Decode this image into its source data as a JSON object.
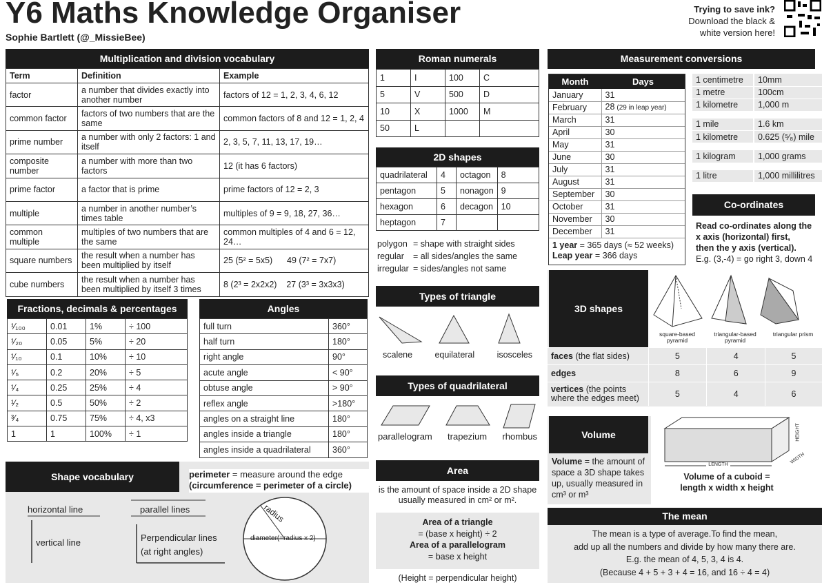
{
  "header": {
    "title": "Y6 Maths Knowledge Organiser",
    "author": "Sophie Bartlett (@_MissieBee)",
    "ink_note": [
      "Trying to save ink?",
      "Download the black &",
      "white version here!"
    ]
  },
  "vocab": {
    "title": "Multiplication and division vocabulary",
    "columns": [
      "Term",
      "Definition",
      "Example"
    ],
    "rows": [
      [
        "factor",
        "a number that divides exactly into another number",
        "factors of 12 = 1, 2, 3, 4, 6, 12"
      ],
      [
        "common factor",
        "factors of two numbers that are the same",
        "common factors of 8 and 12 = 1, 2, 4"
      ],
      [
        "prime number",
        "a number with only 2 factors: 1 and itself",
        "2, 3, 5, 7, 11, 13, 17, 19…"
      ],
      [
        "composite number",
        "a number with more than two factors",
        "12 (it has 6 factors)"
      ],
      [
        "prime factor",
        "a factor that is prime",
        "prime factors of 12 = 2, 3"
      ],
      [
        "multiple",
        "a number in another number’s times table",
        "multiples of 9 = 9, 18, 27, 36…"
      ],
      [
        "common multiple",
        "multiples of two numbers that are the same",
        "common multiples of 4 and 6 = 12, 24…"
      ],
      [
        "square numbers",
        "the result when a number has been multiplied by itself",
        "25 (5² = 5x5)      49 (7² = 7x7)"
      ],
      [
        "cube numbers",
        "the result when a number has been multiplied by itself 3 times",
        "8 (2³ = 2x2x2)    27 (3³ = 3x3x3)"
      ]
    ]
  },
  "fractions": {
    "title": "Fractions, decimals & percentages",
    "rows": [
      [
        "¹⁄₁₀₀",
        "0.01",
        "1%",
        "÷ 100"
      ],
      [
        "¹⁄₂₀",
        "0.05",
        "5%",
        "÷ 20"
      ],
      [
        "¹⁄₁₀",
        "0.1",
        "10%",
        "÷ 10"
      ],
      [
        "¹⁄₅",
        "0.2",
        "20%",
        "÷ 5"
      ],
      [
        "¹⁄₄",
        "0.25",
        "25%",
        "÷ 4"
      ],
      [
        "¹⁄₂",
        "0.5",
        "50%",
        "÷ 2"
      ],
      [
        "³⁄₄",
        "0.75",
        "75%",
        "÷ 4, x3"
      ],
      [
        "1",
        "1",
        "100%",
        "÷ 1"
      ]
    ]
  },
  "angles": {
    "title": "Angles",
    "rows": [
      [
        "full turn",
        "360°"
      ],
      [
        "half turn",
        "180°"
      ],
      [
        "right angle",
        "90°"
      ],
      [
        "acute angle",
        "< 90°"
      ],
      [
        "obtuse angle",
        "> 90°"
      ],
      [
        "reflex angle",
        ">180°"
      ],
      [
        "angles on a straight line",
        "180°"
      ],
      [
        "angles inside a triangle",
        "180°"
      ],
      [
        "angles inside a quadrilateral",
        "360°"
      ]
    ]
  },
  "shape_vocab": {
    "title": "Shape vocabulary",
    "perimeter": {
      "bold": "perimeter",
      "text": "= measure around the edge"
    },
    "circumference": "(circumference = perimeter of a circle)",
    "horizontal": "horizontal line",
    "vertical": "vertical line",
    "parallel": "parallel lines",
    "perpendicular": [
      "Perpendicular lines",
      "(at right angles)"
    ],
    "radius": "radius",
    "diameter": "diameter(=radius x 2)"
  },
  "roman": {
    "title": "Roman numerals",
    "rows": [
      [
        "1",
        "I",
        "100",
        "C"
      ],
      [
        "5",
        "V",
        "500",
        "D"
      ],
      [
        "10",
        "X",
        "1000",
        "M"
      ],
      [
        "50",
        "L"
      ]
    ]
  },
  "shapes_2d": {
    "title": "2D shapes",
    "rows": [
      [
        "quadrilateral",
        "4",
        "octagon",
        "8"
      ],
      [
        "pentagon",
        "5",
        "nonagon",
        "9"
      ],
      [
        "hexagon",
        "6",
        "decagon",
        "10"
      ],
      [
        "heptagon",
        "7"
      ]
    ],
    "definitions": [
      {
        "term": "polygon",
        "def": "= shape with straight sides"
      },
      {
        "term": "regular",
        "def": "= all sides/angles the same"
      },
      {
        "term": "irregular",
        "def": "= sides/angles not same"
      }
    ]
  },
  "triangles": {
    "title": "Types of triangle",
    "labels": [
      "scalene",
      "equilateral",
      "isosceles"
    ]
  },
  "quadrilaterals": {
    "title": "Types of quadrilateral",
    "labels": [
      "parallelogram",
      "trapezium",
      "rhombus"
    ]
  },
  "area": {
    "title": "Area",
    "text": "is the amount of space inside a 2D shape usually measured in cm² or m².",
    "formulas": [
      {
        "name": "Area of a triangle",
        "formula": "= (base x height) ÷ 2"
      },
      {
        "name": "Area of a parallelogram",
        "formula": "= base x height"
      }
    ],
    "note": "(Height = perpendicular height)"
  },
  "measurement": {
    "title": "Measurement conversions",
    "columns": [
      "Month",
      "Days"
    ],
    "months": [
      [
        "January",
        "31"
      ],
      [
        "February",
        "28",
        "(29 in leap year)"
      ],
      [
        "March",
        "31"
      ],
      [
        "April",
        "30"
      ],
      [
        "May",
        "31"
      ],
      [
        "June",
        "30"
      ],
      [
        "July",
        "31"
      ],
      [
        "August",
        "31"
      ],
      [
        "September",
        "30"
      ],
      [
        "October",
        "31"
      ],
      [
        "November",
        "30"
      ],
      [
        "December",
        "31"
      ]
    ],
    "years": [
      {
        "bold": "1 year",
        "text": "= 365 days (≈ 52 weeks)"
      },
      {
        "bold": "Leap year",
        "text": "= 366 days"
      }
    ],
    "conversions": [
      [
        [
          "1 centimetre",
          "10mm"
        ],
        [
          "1 metre",
          "100cm"
        ],
        [
          "1 kilometre",
          "1,000 m"
        ]
      ],
      [
        [
          "1 mile",
          "1.6 km"
        ],
        [
          "1 kilometre",
          "0.625 (⁵⁄₈) mile"
        ]
      ],
      [
        [
          "1 kilogram",
          "1,000 grams"
        ]
      ],
      [
        [
          "1 litre",
          "1,000 millilitres"
        ]
      ]
    ]
  },
  "coordinates": {
    "title": "Co-ordinates",
    "lines": [
      "Read co-ordinates along the",
      "x axis (horizontal) first,",
      "then the y axis (vertical)."
    ],
    "example": "E.g. (3,-4) = go right 3, down 4"
  },
  "shapes_3d": {
    "title": "3D shapes",
    "shapes": [
      "square-based pyramid",
      "triangular-based pyramid",
      "triangular prism"
    ],
    "rows": [
      {
        "label": "faces",
        "note": "(the flat sides)",
        "values": [
          5,
          4,
          5
        ]
      },
      {
        "label": "edges",
        "values": [
          8,
          6,
          9
        ]
      },
      {
        "label": "vertices",
        "note": "(the points where the edges meet)",
        "values": [
          5,
          4,
          6
        ]
      }
    ]
  },
  "volume": {
    "title": "Volume",
    "bold": "Volume",
    "text": "= the amount of space a 3D shape takes up, usually measured in cm³ or m³",
    "length": "LENGTH",
    "width": "WIDTH",
    "height": "HEIGHT",
    "formula": [
      "Volume of a cuboid =",
      "length x width x height"
    ]
  },
  "mean": {
    "title": "The mean",
    "lines": [
      "The mean is a type of average.To find the mean,",
      "add up all the numbers and divide by how many there are.",
      "E.g. the mean of 4, 5, 3, 4 is 4.",
      "(Because 4 + 5 + 3 + 4 = 16, and 16 ÷ 4 = 4)"
    ]
  }
}
